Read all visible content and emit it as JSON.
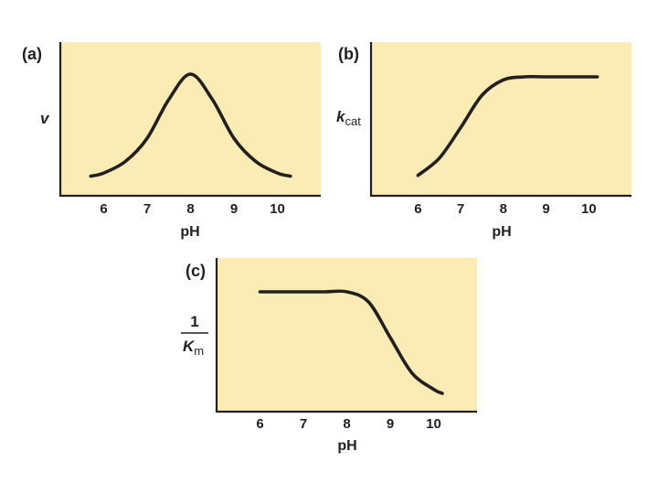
{
  "chart_data": [
    {
      "id": "a",
      "panel_label": "(a)",
      "type": "line",
      "xlabel": "pH",
      "ylabel": "v",
      "xticks": [
        6,
        7,
        8,
        9,
        10
      ],
      "xlim": [
        5.0,
        11.0
      ],
      "ylim": [
        0,
        1
      ],
      "series": [
        {
          "x": [
            5.7,
            6.0,
            6.5,
            7.0,
            7.5,
            8.0,
            8.5,
            9.0,
            9.5,
            10.0,
            10.3
          ],
          "y": [
            0.03,
            0.06,
            0.17,
            0.39,
            0.76,
            1.0,
            0.76,
            0.39,
            0.17,
            0.06,
            0.03
          ]
        }
      ]
    },
    {
      "id": "b",
      "panel_label": "(b)",
      "type": "line",
      "xlabel": "pH",
      "ylabel": "k",
      "ylabel_sub": "cat",
      "xticks": [
        6,
        7,
        8,
        9,
        10
      ],
      "xlim": [
        4.9,
        11.0
      ],
      "ylim": [
        0,
        1
      ],
      "series": [
        {
          "x": [
            6.0,
            6.5,
            7.0,
            7.5,
            8.0,
            8.5,
            9.0,
            9.5,
            10.0,
            10.2
          ],
          "y": [
            0.03,
            0.2,
            0.5,
            0.82,
            0.97,
            1.0,
            1.0,
            1.0,
            1.0,
            1.0
          ]
        }
      ]
    },
    {
      "id": "c",
      "panel_label": "(c)",
      "type": "line",
      "xlabel": "pH",
      "ylabel_numerator": "1",
      "ylabel_denominator": "K",
      "ylabel_denominator_sub": "m",
      "xticks": [
        6,
        7,
        8,
        9,
        10
      ],
      "xlim": [
        5.0,
        11.0
      ],
      "ylim": [
        0,
        1
      ],
      "series": [
        {
          "x": [
            6.0,
            6.5,
            7.0,
            7.5,
            8.0,
            8.5,
            9.0,
            9.5,
            10.0,
            10.2
          ],
          "y": [
            1.0,
            1.0,
            1.0,
            1.0,
            1.0,
            0.9,
            0.55,
            0.2,
            0.04,
            0.0
          ]
        }
      ]
    }
  ]
}
